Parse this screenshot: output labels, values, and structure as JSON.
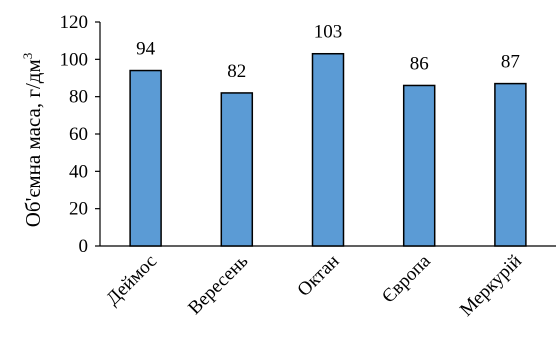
{
  "chart_data": {
    "type": "bar",
    "categories": [
      "Деймос",
      "Вересень",
      "Октан",
      "Європа",
      "Меркурій"
    ],
    "values": [
      94,
      82,
      103,
      86,
      87
    ],
    "data_labels": [
      "94",
      "82",
      "103",
      "86",
      "87"
    ],
    "title": "",
    "xlabel": "",
    "ylabel": "Об'ємна маса, г/дм",
    "ylabel_superscript": "3",
    "ylim": [
      0,
      120
    ],
    "yticks": [
      0,
      20,
      40,
      60,
      80,
      100,
      120
    ],
    "ytick_labels": [
      "0",
      "20",
      "40",
      "60",
      "80",
      "100",
      "120"
    ],
    "grid": false,
    "legend": "none",
    "bar_color": "#5b9bd5",
    "bar_edge_color": "#000000"
  }
}
